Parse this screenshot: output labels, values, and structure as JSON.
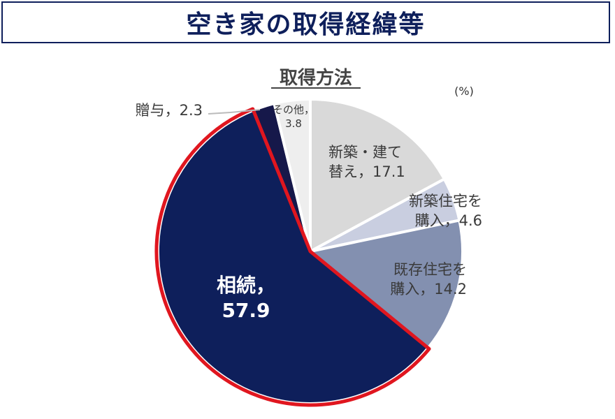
{
  "page": {
    "title": "空き家の取得経緯等"
  },
  "chart_data": {
    "type": "pie",
    "title": "取得方法",
    "unit": "(%)",
    "slices": [
      {
        "label": "新築・建て替え",
        "value": 17.1,
        "color": "#d9d9d9",
        "label_text": [
          "新築・建て",
          "替え，17.1"
        ]
      },
      {
        "label": "新築住宅を購入",
        "value": 4.6,
        "color": "#c9cee0",
        "label_text": [
          "新築住宅を",
          "購入，4.6"
        ]
      },
      {
        "label": "既存住宅を購入",
        "value": 14.2,
        "color": "#8390b0",
        "label_text": [
          "既存住宅を",
          "購入，14.2"
        ]
      },
      {
        "label": "相続",
        "value": 57.9,
        "color": "#0e1f5b",
        "highlight": true,
        "label_text": [
          "相続，",
          "57.9"
        ]
      },
      {
        "label": "贈与",
        "value": 2.3,
        "color": "#16184a",
        "label_text": [
          "贈与，2.3"
        ]
      },
      {
        "label": "その他",
        "value": 3.8,
        "color": "#eeeeee",
        "label_text": [
          "その他，",
          "3.8"
        ]
      }
    ]
  }
}
